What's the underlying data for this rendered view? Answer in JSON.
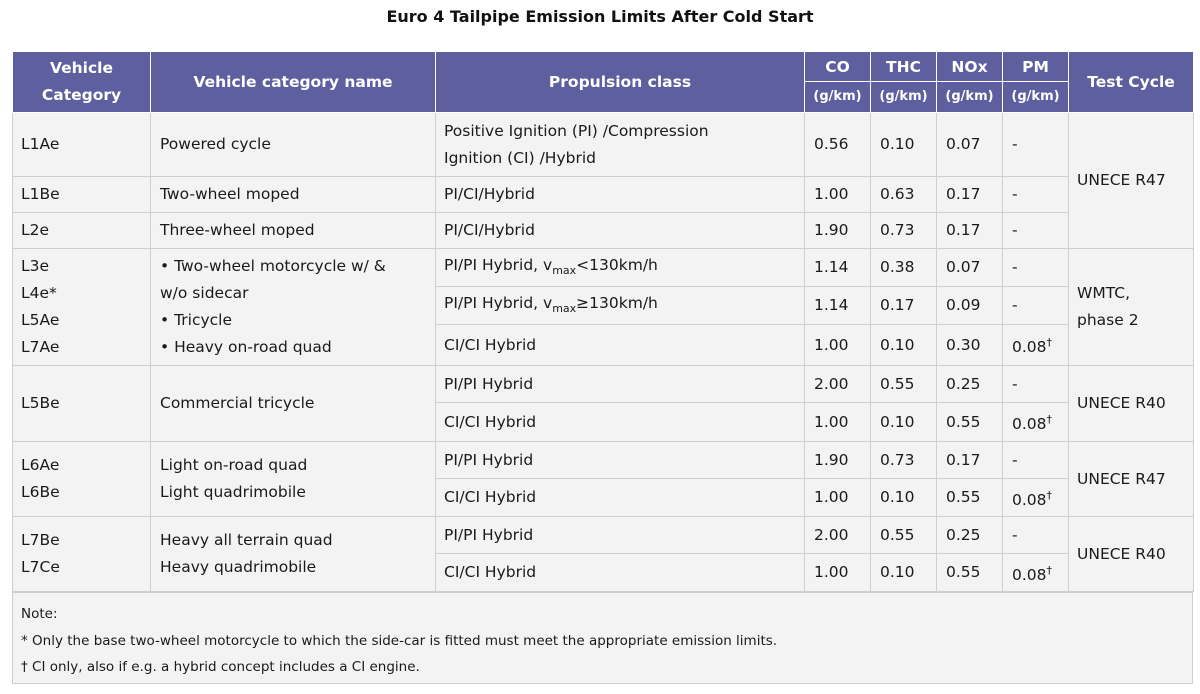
{
  "title": "Euro 4 Tailpipe Emission Limits After Cold Start",
  "headers": {
    "vehicle_category": "Vehicle Category",
    "vehicle_category_line1": "Vehicle",
    "vehicle_category_line2": "Category",
    "category_name": "Vehicle category name",
    "propulsion": "Propulsion class",
    "co": "CO",
    "thc": "THC",
    "nox": "NOx",
    "pm": "PM",
    "unit": "(g/km)",
    "test_cycle": "Test Cycle"
  },
  "rows": [
    {
      "cat": [
        "L1Ae"
      ],
      "name": [
        "Powered cycle"
      ],
      "prop": "Positive Ignition (PI) /Compression Ignition (CI) /Hybrid",
      "prop_line1": "Positive Ignition (PI) /Compression",
      "prop_line2": "Ignition (CI) /Hybrid",
      "co": "0.56",
      "thc": "0.10",
      "nox": "0.07",
      "pm": "-"
    },
    {
      "cat": [
        "L1Be"
      ],
      "name": [
        "Two-wheel moped"
      ],
      "prop": "PI/CI/Hybrid",
      "co": "1.00",
      "thc": "0.63",
      "nox": "0.17",
      "pm": "-"
    },
    {
      "cat": [
        "L2e"
      ],
      "name": [
        "Three-wheel moped"
      ],
      "prop": "PI/CI/Hybrid",
      "co": "1.90",
      "thc": "0.73",
      "nox": "0.17",
      "pm": "-"
    },
    {
      "cat": [
        "L3e",
        "L4e*",
        "L5Ae",
        "L7Ae"
      ],
      "name_items": [
        "• Two-wheel motorcycle w/ &",
        "w/o sidecar",
        "• Tricycle",
        "• Heavy on-road quad"
      ],
      "subrows": [
        {
          "prop_pre": "PI/PI Hybrid, v",
          "prop_sub": "max",
          "prop_post": "<130km/h",
          "co": "1.14",
          "thc": "0.38",
          "nox": "0.07",
          "pm": "-"
        },
        {
          "prop_pre": "PI/PI Hybrid, v",
          "prop_sub": "max",
          "prop_post": "≥130km/h",
          "co": "1.14",
          "thc": "0.17",
          "nox": "0.09",
          "pm": "-"
        },
        {
          "prop": "CI/CI Hybrid",
          "co": "1.00",
          "thc": "0.10",
          "nox": "0.30",
          "pm": "0.08",
          "pm_mark": "†"
        }
      ]
    },
    {
      "cat": [
        "L5Be"
      ],
      "name": [
        "Commercial tricycle"
      ],
      "subrows": [
        {
          "prop": "PI/PI Hybrid",
          "co": "2.00",
          "thc": "0.55",
          "nox": "0.25",
          "pm": "-"
        },
        {
          "prop": "CI/CI Hybrid",
          "co": "1.00",
          "thc": "0.10",
          "nox": "0.55",
          "pm": "0.08",
          "pm_mark": "†"
        }
      ]
    },
    {
      "cat": [
        "L6Ae",
        "L6Be"
      ],
      "name": [
        "Light on-road quad",
        "Light quadrimobile"
      ],
      "subrows": [
        {
          "prop": "PI/PI Hybrid",
          "co": "1.90",
          "thc": "0.73",
          "nox": "0.17",
          "pm": "-"
        },
        {
          "prop": "CI/CI Hybrid",
          "co": "1.00",
          "thc": "0.10",
          "nox": "0.55",
          "pm": "0.08",
          "pm_mark": "†"
        }
      ]
    },
    {
      "cat": [
        "L7Be",
        "L7Ce"
      ],
      "name": [
        "Heavy all terrain quad",
        "Heavy quadrimobile"
      ],
      "subrows": [
        {
          "prop": "PI/PI Hybrid",
          "co": "2.00",
          "thc": "0.55",
          "nox": "0.25",
          "pm": "-"
        },
        {
          "prop": "CI/CI Hybrid",
          "co": "1.00",
          "thc": "0.10",
          "nox": "0.55",
          "pm": "0.08",
          "pm_mark": "†"
        }
      ]
    }
  ],
  "test_cycles": {
    "group1": "UNECE R47",
    "group2_line1": "WMTC,",
    "group2_line2": "phase 2",
    "group3": "UNECE R40",
    "group4": "UNECE R47",
    "group5": "UNECE R40"
  },
  "notes": {
    "heading": "Note:",
    "star": "* Only the base two-wheel motorcycle to which the side-car is fitted must meet the appropriate emission limits.",
    "dagger": "† CI only, also if e.g. a hybrid concept includes a CI engine."
  },
  "colors": {
    "header_bg": "#5e5f9e",
    "cell_bg": "#f3f3f3"
  }
}
